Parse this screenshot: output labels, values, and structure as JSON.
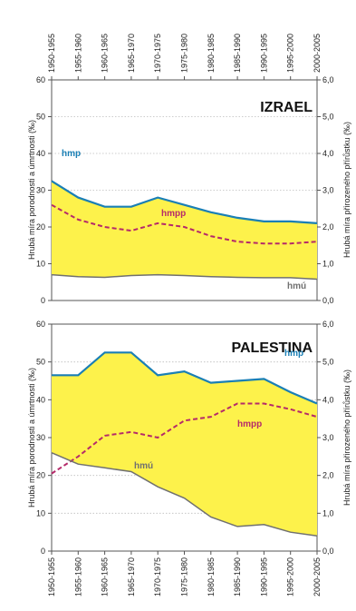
{
  "chart_data": {
    "type": "area",
    "categories": [
      "1950-1955",
      "1955-1960",
      "1960-1965",
      "1965-1970",
      "1970-1975",
      "1975-1980",
      "1980-1985",
      "1985-1990",
      "1990-1995",
      "1995-2000",
      "2000-2005"
    ],
    "ylabel": "Hrubá míra porodnosti a úmrtnosti (‰)",
    "y2label": "Hrubá míra přirozeného přírůstku (‰)",
    "ylim": [
      0,
      60
    ],
    "y2lim": [
      0,
      6
    ],
    "y_ticks": [
      "0",
      "10",
      "20",
      "30",
      "40",
      "50",
      "60"
    ],
    "y2_ticks": [
      "0,0",
      "1,0",
      "2,0",
      "3,0",
      "4,0",
      "5,0",
      "6,0"
    ],
    "grid": true,
    "colors": {
      "hmp": "#1a7fb5",
      "hmpp": "#b52a6a",
      "hmu": "#707070",
      "fill": "#fdf24b"
    },
    "panels": [
      {
        "title": "IZRAEL",
        "series": [
          {
            "name": "hmp",
            "values": [
              32.5,
              28,
              25.5,
              25.5,
              28,
              26,
              24,
              22.5,
              21.5,
              21.5,
              21
            ]
          },
          {
            "name": "hmpp",
            "values": [
              2.6,
              2.2,
              2.0,
              1.9,
              2.1,
              2.0,
              1.75,
              1.6,
              1.55,
              1.55,
              1.6
            ]
          },
          {
            "name": "hmú",
            "values": [
              7,
              6.5,
              6.3,
              6.8,
              7,
              6.8,
              6.5,
              6.3,
              6.2,
              6.2,
              5.8
            ]
          }
        ]
      },
      {
        "title": "PALESTINA",
        "series": [
          {
            "name": "hmp",
            "values": [
              46.5,
              46.5,
              52.5,
              52.5,
              46.5,
              47.5,
              44.5,
              45,
              45.5,
              42,
              39
            ]
          },
          {
            "name": "hmpp",
            "values": [
              2.05,
              2.5,
              3.05,
              3.15,
              3.0,
              3.45,
              3.55,
              3.9,
              3.9,
              3.75,
              3.55
            ]
          },
          {
            "name": "hmú",
            "values": [
              26,
              23,
              22,
              21,
              17,
              14,
              9,
              6.5,
              7,
              5,
              4
            ]
          }
        ]
      }
    ]
  }
}
